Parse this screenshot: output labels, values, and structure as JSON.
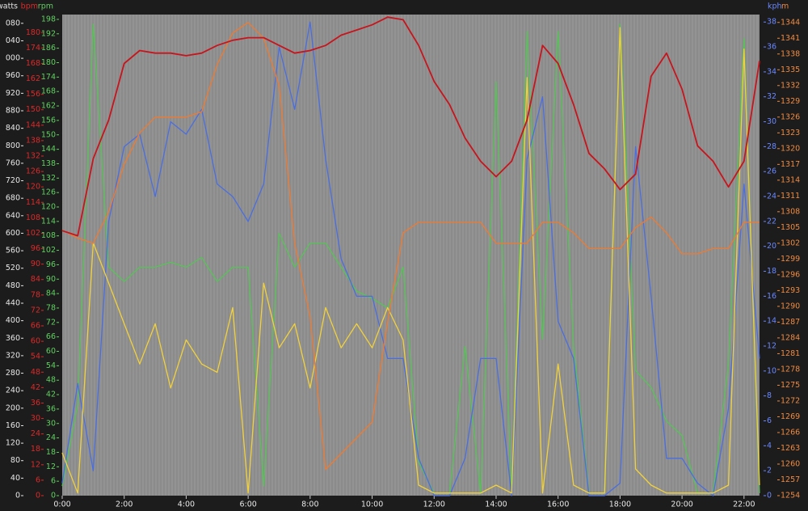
{
  "chart_data": {
    "type": "line",
    "x": [
      0,
      0.5,
      1,
      1.5,
      2,
      2.5,
      3,
      3.5,
      4,
      4.5,
      5,
      5.5,
      6,
      6.5,
      7,
      7.5,
      8,
      8.5,
      9,
      9.5,
      10,
      10.5,
      11,
      11.5,
      12,
      12.5,
      13,
      13.5,
      14,
      14.5,
      15,
      15.5,
      16,
      16.5,
      17,
      17.5,
      18,
      18.5,
      19,
      19.5,
      20,
      20.5,
      21,
      21.5,
      22,
      22.5
    ],
    "xlim": [
      0,
      22.5
    ],
    "xticks": [
      {
        "value": 0,
        "label": "0:00"
      },
      {
        "value": 2,
        "label": "2:00"
      },
      {
        "value": 4,
        "label": "4:00"
      },
      {
        "value": 6,
        "label": "6:00"
      },
      {
        "value": 8,
        "label": "8:00"
      },
      {
        "value": 10,
        "label": "10:00"
      },
      {
        "value": 12,
        "label": "12:00"
      },
      {
        "value": 14,
        "label": "14:00"
      },
      {
        "value": 16,
        "label": "16:00"
      },
      {
        "value": 18,
        "label": "18:00"
      },
      {
        "value": 20,
        "label": "20:00"
      },
      {
        "value": 22,
        "label": "22:00"
      }
    ],
    "axes": [
      {
        "label": "watts",
        "side": "left",
        "color": "#f2d23a",
        "label_color": "#e8e8e8",
        "ylim": [
          0,
          1100
        ],
        "yticks": [
          0,
          40,
          80,
          120,
          160,
          200,
          240,
          280,
          320,
          360,
          400,
          440,
          480,
          520,
          560,
          600,
          640,
          680,
          720,
          760,
          800,
          840,
          880,
          920,
          960,
          {
            "value": 1000,
            "label": "000"
          },
          {
            "value": 1040,
            "label": "040"
          },
          {
            "value": 1080,
            "label": "080"
          }
        ],
        "values": [
          98,
          6,
          578,
          486,
          393,
          301,
          393,
          246,
          356,
          301,
          282,
          430,
          6,
          486,
          338,
          393,
          246,
          430,
          338,
          393,
          338,
          430,
          356,
          24,
          6,
          6,
          6,
          6,
          24,
          6,
          956,
          6,
          301,
          24,
          6,
          6,
          1070,
          61,
          24,
          6,
          6,
          6,
          6,
          24,
          1021,
          24
        ]
      },
      {
        "label": "bpm",
        "side": "left",
        "color": "#c8141c",
        "label_color": "#e02828",
        "ylim": [
          0,
          187
        ],
        "yticks": [
          0,
          6,
          12,
          18,
          24,
          30,
          36,
          42,
          48,
          54,
          60,
          66,
          72,
          78,
          84,
          90,
          96,
          102,
          108,
          114,
          120,
          126,
          132,
          138,
          144,
          150,
          156,
          162,
          168,
          174,
          180
        ],
        "values": [
          103,
          101,
          131,
          146,
          168,
          173,
          172,
          172,
          171,
          172,
          175,
          177,
          178,
          178,
          175,
          172,
          173,
          175,
          179,
          181,
          183,
          186,
          185,
          175,
          161,
          152,
          139,
          130,
          124,
          130,
          146,
          175,
          168,
          152,
          133,
          127,
          119,
          125,
          163,
          172,
          158,
          136,
          130,
          120,
          130,
          169
        ]
      },
      {
        "label": "rpm",
        "side": "left",
        "color": "#55c455",
        "label_color": "#60d060",
        "ylim": [
          0,
          200
        ],
        "yticks": [
          0,
          6,
          12,
          18,
          24,
          30,
          36,
          42,
          48,
          54,
          60,
          66,
          72,
          78,
          84,
          90,
          96,
          102,
          108,
          114,
          120,
          126,
          132,
          138,
          144,
          150,
          156,
          162,
          168,
          174,
          180,
          186,
          192,
          198
        ],
        "values": [
          4,
          38,
          196,
          95,
          89,
          95,
          95,
          97,
          95,
          99,
          89,
          95,
          95,
          4,
          109,
          95,
          105,
          105,
          95,
          85,
          82,
          78,
          95,
          14,
          1,
          1,
          62,
          1,
          172,
          1,
          193,
          65,
          193,
          62,
          1,
          1,
          196,
          52,
          45,
          31,
          25,
          1,
          1,
          55,
          190,
          1
        ]
      },
      {
        "label": "kph",
        "side": "right",
        "color": "#4a6ee0",
        "label_color": "#6a88ff",
        "ylim": [
          0,
          38.6
        ],
        "yticks": [
          0,
          2,
          4,
          6,
          8,
          10,
          12,
          14,
          16,
          18,
          20,
          22,
          24,
          26,
          28,
          30,
          32,
          34,
          36,
          38
        ],
        "values": [
          1,
          9,
          2,
          22,
          28,
          29,
          24,
          30,
          29,
          31,
          25,
          24,
          22,
          25,
          36,
          31,
          38,
          27,
          19,
          16,
          16,
          11,
          11,
          3,
          0,
          0,
          3,
          11,
          11,
          0,
          27,
          32,
          14,
          11,
          0,
          0,
          1,
          28,
          16,
          3,
          3,
          1,
          0,
          7,
          25,
          11
        ]
      },
      {
        "label": "m",
        "side": "right",
        "color": "#f07a30",
        "label_color": "#f08a40",
        "ylim": [
          1254,
          1345.5
        ],
        "yticks": [
          1254,
          1257,
          1260,
          1263,
          1266,
          1269,
          1272,
          1275,
          1278,
          1281,
          1284,
          1287,
          1290,
          1293,
          1296,
          1299,
          1302,
          1305,
          1308,
          1311,
          1314,
          1317,
          1320,
          1323,
          1326,
          1329,
          1332,
          1335,
          1338,
          1341,
          1344
        ],
        "values": [
          1304.5,
          1303,
          1302,
          1308,
          1317,
          1323,
          1326,
          1326,
          1326,
          1327,
          1336,
          1342,
          1344,
          1341,
          1332,
          1302,
          1288,
          1259,
          1262,
          1265,
          1268,
          1287,
          1304,
          1306,
          1306,
          1306,
          1306,
          1306,
          1302,
          1302,
          1302,
          1306,
          1306,
          1304,
          1301,
          1301,
          1301,
          1305,
          1307,
          1304,
          1300,
          1300,
          1301,
          1301,
          1306,
          1306
        ]
      }
    ]
  }
}
